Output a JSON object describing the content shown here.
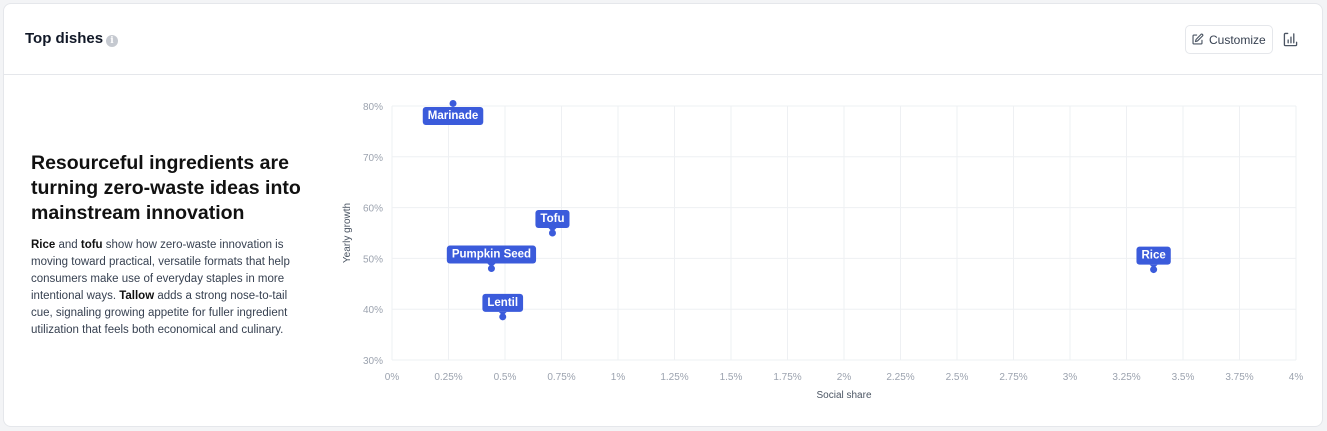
{
  "header": {
    "title": "Top dishes",
    "info_icon": "info-icon",
    "customize_label": "Customize",
    "customize_icon": "edit-icon",
    "chart_toggle_icon": "chart-icon"
  },
  "insight": {
    "headline": "Resourceful ingredients are turning zero-waste ideas into mainstream innovation",
    "body_parts": [
      {
        "text": "Rice",
        "bold": true
      },
      {
        "text": " and ",
        "bold": false
      },
      {
        "text": "tofu",
        "bold": true
      },
      {
        "text": " show how zero-waste innovation is moving toward practical, versatile formats that help consumers make use of everyday staples in more intentional ways. ",
        "bold": false
      },
      {
        "text": "Tallow",
        "bold": true
      },
      {
        "text": " adds a strong nose-to-tail cue, signaling growing appetite for fuller ingredient utilization that feels both economical and culinary.",
        "bold": false
      }
    ]
  },
  "colors": {
    "accent": "#3b5bdb",
    "grid": "#eef0f3"
  },
  "chart_data": {
    "type": "scatter",
    "title": "",
    "xlabel": "Social share",
    "ylabel": "Yearly growth",
    "xlim": [
      0,
      4
    ],
    "ylim": [
      30,
      80
    ],
    "x_ticks": [
      0,
      0.25,
      0.5,
      0.75,
      1,
      1.25,
      1.5,
      1.75,
      2,
      2.25,
      2.5,
      2.75,
      3,
      3.25,
      3.5,
      3.75,
      4
    ],
    "x_tick_labels": [
      "0%",
      "0.25%",
      "0.5%",
      "0.75%",
      "1%",
      "1.25%",
      "1.5%",
      "1.75%",
      "2%",
      "2.25%",
      "2.5%",
      "2.75%",
      "3%",
      "3.25%",
      "3.5%",
      "3.75%",
      "4%"
    ],
    "y_ticks": [
      30,
      40,
      50,
      60,
      70,
      80
    ],
    "y_tick_labels": [
      "30%",
      "40%",
      "50%",
      "60%",
      "70%",
      "80%"
    ],
    "grid": true,
    "points": [
      {
        "name": "Marinade",
        "x": 0.27,
        "y": 80.5
      },
      {
        "name": "Tofu",
        "x": 0.71,
        "y": 55
      },
      {
        "name": "Pumpkin Seed",
        "x": 0.44,
        "y": 48
      },
      {
        "name": "Lentil",
        "x": 0.49,
        "y": 38.5
      },
      {
        "name": "Rice",
        "x": 3.37,
        "y": 47.8
      }
    ]
  }
}
